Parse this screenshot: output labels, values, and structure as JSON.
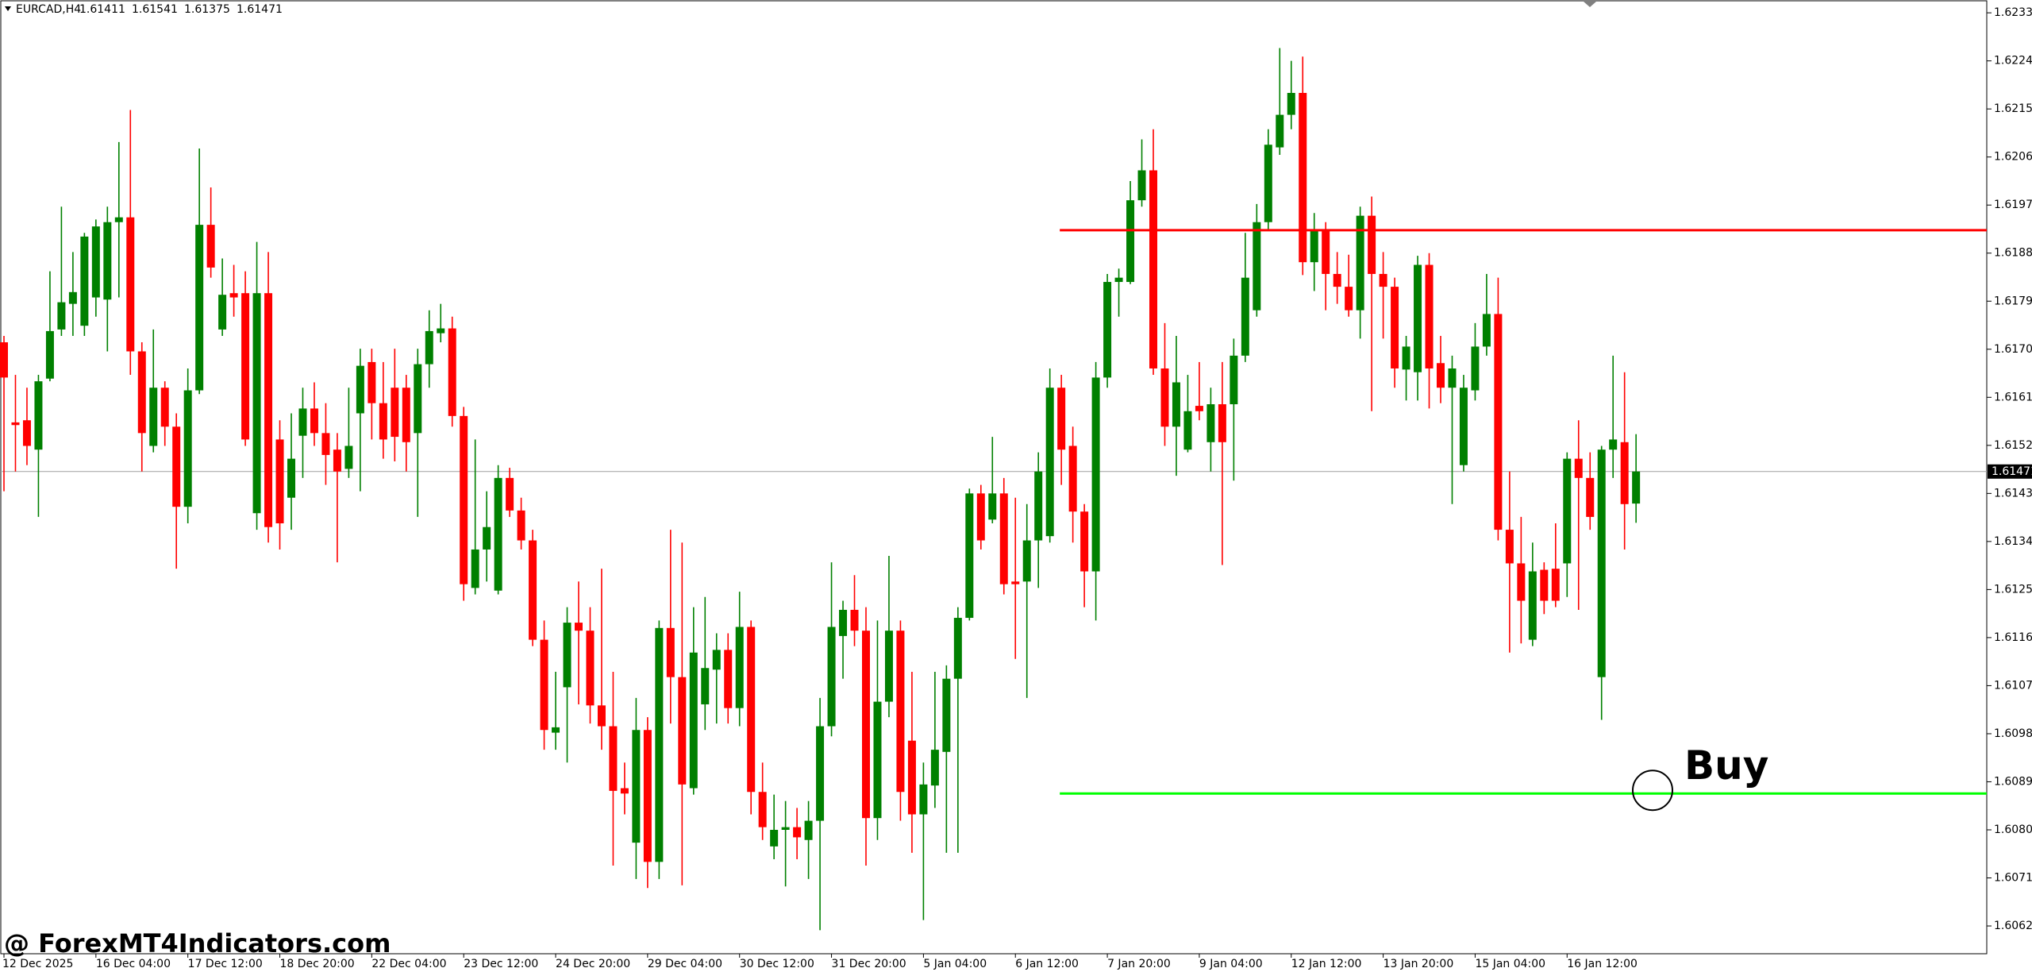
{
  "chart_data": {
    "type": "candlestick",
    "symbol": "EURCAD,H4",
    "watermark": "@ ForexMT4Indicators.com",
    "annotation": "Buy",
    "up_color": "#008000",
    "down_color": "#ff0000",
    "grid": false,
    "ylim": [
      1.60568,
      1.62354
    ],
    "yticks": [
      {
        "value": 1.6233,
        "label": "1.62330"
      },
      {
        "value": 1.6224,
        "label": "1.62240"
      },
      {
        "value": 1.6215,
        "label": "1.62150"
      },
      {
        "value": 1.6206,
        "label": "1.62060"
      },
      {
        "value": 1.6197,
        "label": "1.61970"
      },
      {
        "value": 1.6188,
        "label": "1.61880"
      },
      {
        "value": 1.6179,
        "label": "1.61790"
      },
      {
        "value": 1.617,
        "label": "1.61700"
      },
      {
        "value": 1.6161,
        "label": "1.61610"
      },
      {
        "value": 1.6152,
        "label": "1.61520"
      },
      {
        "value": 1.6143,
        "label": "1.61430"
      },
      {
        "value": 1.6134,
        "label": "1.61340"
      },
      {
        "value": 1.6125,
        "label": "1.61250"
      },
      {
        "value": 1.6116,
        "label": "1.61160"
      },
      {
        "value": 1.6107,
        "label": "1.61070"
      },
      {
        "value": 1.6098,
        "label": "1.60980"
      },
      {
        "value": 1.6089,
        "label": "1.60890"
      },
      {
        "value": 1.608,
        "label": "1.60800"
      },
      {
        "value": 1.6071,
        "label": "1.60710"
      },
      {
        "value": 1.6062,
        "label": "1.60620"
      }
    ],
    "levels": [
      {
        "value": 1.61923,
        "color": "#ff0000"
      },
      {
        "value": 1.60868,
        "color": "#00ff00"
      }
    ],
    "categories": [
      "12 Dec 2025",
      null,
      null,
      null,
      null,
      null,
      null,
      null,
      "16 Dec 04:00",
      null,
      null,
      null,
      null,
      null,
      null,
      null,
      "17 Dec 12:00",
      null,
      null,
      null,
      null,
      null,
      null,
      null,
      "18 Dec 20:00",
      null,
      null,
      null,
      null,
      null,
      null,
      null,
      "22 Dec 04:00",
      null,
      null,
      null,
      null,
      null,
      null,
      null,
      "23 Dec 12:00",
      null,
      null,
      null,
      null,
      null,
      null,
      null,
      "24 Dec 20:00",
      null,
      null,
      null,
      null,
      null,
      null,
      null,
      "29 Dec 04:00",
      null,
      null,
      null,
      null,
      null,
      null,
      null,
      "30 Dec 12:00",
      null,
      null,
      null,
      null,
      null,
      null,
      null,
      "31 Dec 20:00",
      null,
      null,
      null,
      null,
      null,
      null,
      null,
      "5 Jan 04:00",
      null,
      null,
      null,
      null,
      null,
      null,
      null,
      "6 Jan 12:00",
      null,
      null,
      null,
      null,
      null,
      null,
      null,
      "7 Jan 20:00",
      null,
      null,
      null,
      null,
      null,
      null,
      null,
      "9 Jan 04:00",
      null,
      null,
      null,
      null,
      null,
      null,
      null,
      "12 Jan 12:00",
      null,
      null,
      null,
      null,
      null,
      null,
      null,
      "13 Jan 20:00",
      null,
      null,
      null,
      null,
      null,
      null,
      null,
      "15 Jan 04:00",
      null,
      null,
      null,
      null,
      null,
      null,
      null,
      "16 Jan 12:00",
      null,
      null,
      null,
      null,
      null,
      null
    ],
    "open": [
      1.61713,
      1.61563,
      1.61567,
      1.61512,
      1.61645,
      1.61737,
      1.61785,
      1.61744,
      1.61797,
      1.61793,
      1.61938,
      1.61947,
      1.61696,
      1.61519,
      1.61628,
      1.61555,
      1.61405,
      1.61623,
      1.61933,
      1.61737,
      1.61805,
      1.61805,
      1.61393,
      1.61805,
      1.61531,
      1.61422,
      1.61538,
      1.61589,
      1.61543,
      1.61512,
      1.61476,
      1.6158,
      1.61676,
      1.61599,
      1.61628,
      1.61628,
      1.61543,
      1.61672,
      1.6173,
      1.61739,
      1.61575,
      1.61253,
      1.61325,
      1.61248,
      1.61459,
      1.61398,
      1.61342,
      1.61156,
      1.60982,
      1.61067,
      1.61188,
      1.61173,
      1.61033,
      1.60994,
      1.60878,
      1.60776,
      1.60987,
      1.6074,
      1.61178,
      1.61086,
      1.60878,
      1.61035,
      1.611,
      1.61137,
      1.61028,
      1.6118,
      1.60871,
      1.60769,
      1.608,
      1.60805,
      1.60781,
      1.60817,
      1.60994,
      1.61163,
      1.61212,
      1.61173,
      1.60822,
      1.6104,
      1.61173,
      1.60967,
      1.60829,
      1.60883,
      1.60946,
      1.61083,
      1.61197,
      1.6143,
      1.61381,
      1.6143,
      1.61265,
      1.61265,
      1.61342,
      1.6135,
      1.61628,
      1.61519,
      1.61396,
      1.61284,
      1.61647,
      1.61826,
      1.61826,
      1.61979,
      1.62035,
      1.61664,
      1.61555,
      1.61512,
      1.61594,
      1.61526,
      1.61597,
      1.61597,
      1.61688,
      1.61773,
      1.61938,
      1.62078,
      1.62139,
      1.6218,
      1.61863,
      1.61923,
      1.61841,
      1.61817,
      1.61773,
      1.6195,
      1.61841,
      1.61817,
      1.61662,
      1.61657,
      1.61858,
      1.61674,
      1.61628,
      1.61483,
      1.61623,
      1.61705,
      1.61766,
      1.61362,
      1.61299,
      1.61156,
      1.61287,
      1.61289,
      1.61299,
      1.61495,
      1.61459,
      1.61086,
      1.61512,
      1.61526,
      1.61411
    ],
    "high": [
      1.61725,
      1.61652,
      1.61628,
      1.61652,
      1.61846,
      1.61967,
      1.61882,
      1.61918,
      1.61943,
      1.61967,
      1.62088,
      1.62148,
      1.61713,
      1.61737,
      1.6164,
      1.6158,
      1.61664,
      1.62076,
      1.62003,
      1.6187,
      1.61858,
      1.61846,
      1.61901,
      1.61882,
      1.61567,
      1.6158,
      1.61628,
      1.61638,
      1.61599,
      1.61543,
      1.61628,
      1.61701,
      1.61701,
      1.61676,
      1.61701,
      1.61652,
      1.61701,
      1.61773,
      1.61785,
      1.61761,
      1.61592,
      1.61531,
      1.61434,
      1.61483,
      1.61478,
      1.61422,
      1.61362,
      1.61192,
      1.61096,
      1.61217,
      1.61265,
      1.61217,
      1.61289,
      1.61096,
      1.60926,
      1.61047,
      1.61011,
      1.61192,
      1.61362,
      1.61338,
      1.61217,
      1.61236,
      1.61168,
      1.61168,
      1.61246,
      1.61192,
      1.60926,
      1.60866,
      1.60854,
      1.60841,
      1.60854,
      1.61047,
      1.61301,
      1.61229,
      1.61277,
      1.61217,
      1.61192,
      1.61313,
      1.61192,
      1.61096,
      1.60926,
      1.61096,
      1.61108,
      1.61217,
      1.61439,
      1.61446,
      1.61536,
      1.61459,
      1.61422,
      1.6141,
      1.61507,
      1.61664,
      1.61652,
      1.61555,
      1.6141,
      1.61676,
      1.61841,
      1.61851,
      1.62015,
      1.62093,
      1.62112,
      1.61749,
      1.61725,
      1.61652,
      1.61676,
      1.61628,
      1.61676,
      1.6172,
      1.61918,
      1.61972,
      1.62112,
      1.62264,
      1.6224,
      1.62248,
      1.61955,
      1.61938,
      1.61882,
      1.61877,
      1.61967,
      1.61986,
      1.61882,
      1.61834,
      1.61725,
      1.61875,
      1.6188,
      1.61725,
      1.61688,
      1.61652,
      1.61749,
      1.61841,
      1.61834,
      1.61471,
      1.61386,
      1.61338,
      1.61301,
      1.61374,
      1.61507,
      1.61567,
      1.61507,
      1.61519,
      1.61688,
      1.61657,
      1.61541
    ],
    "low": [
      1.61434,
      1.61471,
      1.61483,
      1.61386,
      1.6164,
      1.61725,
      1.61725,
      1.61725,
      1.61761,
      1.61696,
      1.61797,
      1.61652,
      1.61471,
      1.61507,
      1.61519,
      1.61289,
      1.61374,
      1.61616,
      1.61834,
      1.61725,
      1.61761,
      1.61519,
      1.61362,
      1.61338,
      1.61325,
      1.61362,
      1.61459,
      1.61519,
      1.61446,
      1.61301,
      1.61459,
      1.61434,
      1.61531,
      1.61495,
      1.6149,
      1.61471,
      1.61386,
      1.61628,
      1.61713,
      1.61555,
      1.61229,
      1.61241,
      1.61265,
      1.61241,
      1.61386,
      1.61325,
      1.61144,
      1.6095,
      1.6095,
      1.60926,
      1.61035,
      1.60999,
      1.6095,
      1.60733,
      1.60829,
      1.60708,
      1.60691,
      1.60708,
      1.60999,
      1.60696,
      1.60866,
      1.60987,
      1.60999,
      1.60999,
      1.60994,
      1.60829,
      1.60781,
      1.60745,
      1.60694,
      1.60745,
      1.60708,
      1.60612,
      1.60975,
      1.61083,
      1.61144,
      1.60733,
      1.60781,
      1.61011,
      1.60817,
      1.60757,
      1.60631,
      1.60841,
      1.60757,
      1.60757,
      1.61192,
      1.61325,
      1.61374,
      1.61241,
      1.6112,
      1.61047,
      1.61253,
      1.61338,
      1.61446,
      1.61338,
      1.61217,
      1.61192,
      1.61628,
      1.61761,
      1.61822,
      1.61967,
      1.61652,
      1.61519,
      1.61463,
      1.61507,
      1.61567,
      1.61471,
      1.61296,
      1.61454,
      1.61676,
      1.61761,
      1.61923,
      1.62064,
      1.62112,
      1.61839,
      1.61809,
      1.61773,
      1.61785,
      1.61761,
      1.6172,
      1.61584,
      1.6172,
      1.61628,
      1.61604,
      1.61604,
      1.61589,
      1.61599,
      1.6141,
      1.61471,
      1.61604,
      1.61688,
      1.61342,
      1.61132,
      1.61149,
      1.61144,
      1.61204,
      1.61217,
      1.61236,
      1.61212,
      1.61362,
      1.61006,
      1.61459,
      1.61325,
      1.61375
    ],
    "close": [
      1.61647,
      1.61558,
      1.61519,
      1.6164,
      1.61734,
      1.61788,
      1.61807,
      1.61911,
      1.6193,
      1.61938,
      1.61947,
      1.61696,
      1.61543,
      1.61628,
      1.61555,
      1.61405,
      1.61623,
      1.61933,
      1.61853,
      1.61802,
      1.61797,
      1.61531,
      1.61805,
      1.61367,
      1.61374,
      1.61495,
      1.61589,
      1.61543,
      1.61502,
      1.61471,
      1.61519,
      1.61669,
      1.61599,
      1.61531,
      1.61536,
      1.61526,
      1.61672,
      1.61734,
      1.61739,
      1.61575,
      1.6126,
      1.61325,
      1.61367,
      1.61459,
      1.61398,
      1.61342,
      1.61156,
      1.60987,
      1.60992,
      1.61188,
      1.61173,
      1.61033,
      1.60994,
      1.60873,
      1.60868,
      1.60987,
      1.6074,
      1.61178,
      1.61086,
      1.60885,
      1.61132,
      1.61103,
      1.61137,
      1.61028,
      1.6118,
      1.60871,
      1.60805,
      1.608,
      1.60805,
      1.60786,
      1.60817,
      1.60994,
      1.6118,
      1.61212,
      1.61173,
      1.60822,
      1.6104,
      1.61173,
      1.60871,
      1.60829,
      1.60885,
      1.6095,
      1.61083,
      1.61197,
      1.6143,
      1.61342,
      1.6143,
      1.6126,
      1.6126,
      1.61342,
      1.61471,
      1.61628,
      1.61512,
      1.61396,
      1.61284,
      1.61647,
      1.61826,
      1.61834,
      1.61979,
      1.62035,
      1.61664,
      1.61555,
      1.61638,
      1.61584,
      1.61584,
      1.61597,
      1.61526,
      1.61688,
      1.61834,
      1.61938,
      1.62083,
      1.62139,
      1.6218,
      1.61863,
      1.61923,
      1.61841,
      1.61817,
      1.61773,
      1.6195,
      1.61841,
      1.61817,
      1.61664,
      1.61705,
      1.61858,
      1.61664,
      1.61628,
      1.61664,
      1.61628,
      1.61705,
      1.61766,
      1.61362,
      1.61299,
      1.61229,
      1.61284,
      1.61229,
      1.61229,
      1.61495,
      1.61459,
      1.61386,
      1.61512,
      1.61531,
      1.6141,
      1.61471
    ]
  }
}
